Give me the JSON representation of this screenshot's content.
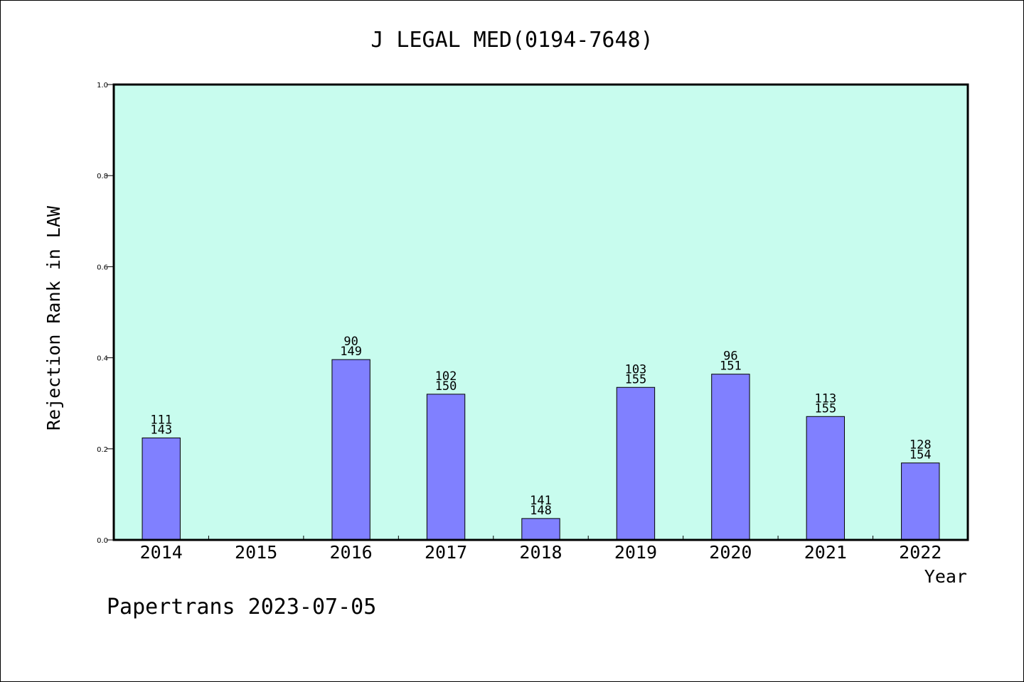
{
  "chart_data": {
    "type": "bar",
    "title": "J LEGAL MED(0194-7648)",
    "xlabel": "Year",
    "ylabel": "Rejection Rank in LAW",
    "categories": [
      "2014",
      "2015",
      "2016",
      "2017",
      "2018",
      "2019",
      "2020",
      "2021",
      "2022"
    ],
    "values": [
      0.224,
      null,
      0.396,
      0.32,
      0.047,
      0.335,
      0.364,
      0.271,
      0.169
    ],
    "label_top": [
      "111",
      "",
      "90",
      "102",
      "141",
      "103",
      "96",
      "113",
      "128"
    ],
    "label_bottom": [
      "143",
      "",
      "149",
      "150",
      "148",
      "155",
      "151",
      "155",
      "154"
    ],
    "ylim": [
      0,
      1.0
    ],
    "yticks": [
      "0.0",
      "0.2",
      "0.4",
      "0.6",
      "0.8",
      "1.0"
    ],
    "grid": false,
    "legend": "none",
    "colors": {
      "plot_bg": "#c8fcee",
      "bar": "#8080ff",
      "bar_edge": "#000000"
    }
  },
  "footer": {
    "text": "Papertrans 2023-07-05"
  }
}
